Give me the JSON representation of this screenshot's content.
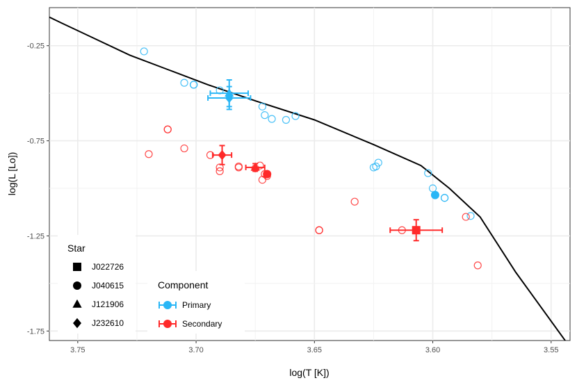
{
  "chart_data": {
    "type": "scatter",
    "title": "",
    "xlabel": "log(T [K])",
    "ylabel": "log(L [Lo])",
    "xlim": [
      3.762,
      3.542
    ],
    "ylim": [
      -1.8,
      -0.05
    ],
    "x_reversed": true,
    "xticks": [
      3.75,
      3.7,
      3.65,
      3.6,
      3.55
    ],
    "xtick_labels": [
      "3.75",
      "3.70",
      "3.65",
      "3.60",
      "3.55"
    ],
    "yticks": [
      -0.25,
      -0.75,
      -1.25,
      -1.75
    ],
    "ytick_labels": [
      "-0.25",
      "-0.75",
      "-1.25",
      "-1.75"
    ],
    "grid": true,
    "colors": {
      "primary": "#29b6f6",
      "secondary": "#ff2a2a",
      "isochrone": "#000000"
    },
    "isochrone": {
      "x": [
        3.762,
        3.757,
        3.745,
        3.728,
        3.712,
        3.695,
        3.675,
        3.65,
        3.625,
        3.605,
        3.593,
        3.58,
        3.565,
        3.5435
      ],
      "y": [
        -0.1,
        -0.13,
        -0.2,
        -0.3,
        -0.375,
        -0.455,
        -0.54,
        -0.64,
        -0.77,
        -0.88,
        -1.0,
        -1.15,
        -1.44,
        -1.81
      ]
    },
    "open_points": {
      "primary": {
        "x": [
          3.722,
          3.705,
          3.701,
          3.701,
          3.69,
          3.672,
          3.668,
          3.671,
          3.662,
          3.658,
          3.624,
          3.623,
          3.625,
          3.602,
          3.6,
          3.595,
          3.595,
          3.584
        ],
        "y": [
          -0.28,
          -0.445,
          -0.455,
          -0.455,
          -0.485,
          -0.57,
          -0.635,
          -0.615,
          -0.64,
          -0.62,
          -0.885,
          -0.865,
          -0.89,
          -0.92,
          -1.0,
          -1.05,
          -1.05,
          -1.145
        ]
      },
      "secondary": {
        "x": [
          3.712,
          3.712,
          3.72,
          3.705,
          3.694,
          3.69,
          3.69,
          3.682,
          3.682,
          3.675,
          3.673,
          3.671,
          3.672,
          3.67,
          3.648,
          3.648,
          3.633,
          3.613,
          3.586,
          3.581
        ],
        "y": [
          -0.69,
          -0.69,
          -0.82,
          -0.79,
          -0.825,
          -0.89,
          -0.91,
          -0.89,
          -0.885,
          -0.895,
          -0.88,
          -0.925,
          -0.955,
          -0.935,
          -1.22,
          -1.22,
          -1.07,
          -1.22,
          -1.15,
          -1.405
        ]
      }
    },
    "measured": [
      {
        "star": "J022726",
        "component": "Secondary",
        "x": 3.607,
        "y": -1.22,
        "xerr": 0.011,
        "yerr": 0.055
      },
      {
        "star": "J040615",
        "component": "Primary",
        "x": 3.599,
        "y": -1.035,
        "xerr": 0,
        "yerr": 0
      },
      {
        "star": "J040615",
        "component": "Secondary",
        "x": 3.67,
        "y": -0.925,
        "xerr": 0,
        "yerr": 0
      },
      {
        "star": "J121906",
        "component": "Primary",
        "x": 3.686,
        "y": -0.5,
        "xerr": 0.008,
        "yerr": 0.07
      },
      {
        "star": "J121906",
        "component": "Secondary",
        "x": 3.675,
        "y": -0.89,
        "xerr": 0.004,
        "yerr": 0.02
      },
      {
        "star": "J232610",
        "component": "Primary",
        "x": 3.686,
        "y": -0.525,
        "xerr": 0.009,
        "yerr": 0.06
      },
      {
        "star": "J232610",
        "component": "Secondary",
        "x": 3.689,
        "y": -0.825,
        "xerr": 0.004,
        "yerr": 0.05
      }
    ],
    "legend_star": {
      "title": "Star",
      "entries": [
        {
          "label": "J022726",
          "shape": "square"
        },
        {
          "label": "J040615",
          "shape": "circle"
        },
        {
          "label": "J121906",
          "shape": "triangle"
        },
        {
          "label": "J232610",
          "shape": "diamond"
        }
      ]
    },
    "legend_component": {
      "title": "Component",
      "entries": [
        {
          "label": "Primary",
          "color": "#29b6f6"
        },
        {
          "label": "Secondary",
          "color": "#ff2a2a"
        }
      ]
    }
  }
}
